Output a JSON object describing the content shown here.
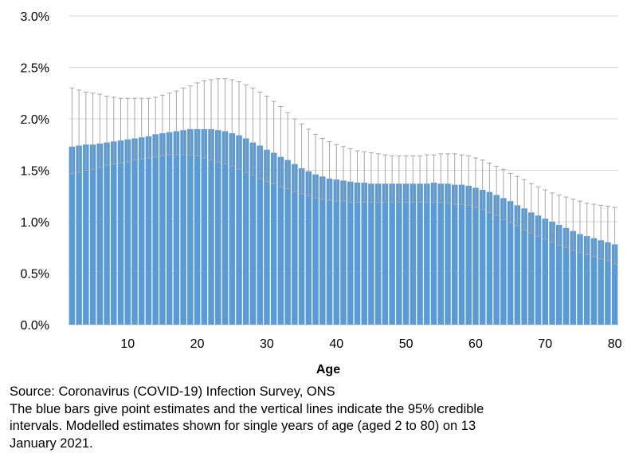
{
  "chart_data": {
    "type": "bar",
    "xlabel": "Age",
    "ylabel": "",
    "title": "",
    "ylim": [
      0,
      3.0
    ],
    "y_ticks": [
      "0.0%",
      "0.5%",
      "1.0%",
      "1.5%",
      "2.0%",
      "2.5%",
      "3.0%"
    ],
    "y_tick_values": [
      0,
      0.5,
      1.0,
      1.5,
      2.0,
      2.5,
      3.0
    ],
    "x_ticks": [
      "10",
      "20",
      "30",
      "40",
      "50",
      "60",
      "70",
      "80"
    ],
    "x_tick_values": [
      10,
      20,
      30,
      40,
      50,
      60,
      70,
      80
    ],
    "grid": true,
    "bar_color": "#5b9bd5",
    "errorbar_color": "#a6a6a6",
    "series": [
      {
        "x": [
          2,
          3,
          4,
          5,
          6,
          7,
          8,
          9,
          10,
          11,
          12,
          13,
          14,
          15,
          16,
          17,
          18,
          19,
          20,
          21,
          22,
          23,
          24,
          25,
          26,
          27,
          28,
          29,
          30,
          31,
          32,
          33,
          34,
          35,
          36,
          37,
          38,
          39,
          40,
          41,
          42,
          43,
          44,
          45,
          46,
          47,
          48,
          49,
          50,
          51,
          52,
          53,
          54,
          55,
          56,
          57,
          58,
          59,
          60,
          61,
          62,
          63,
          64,
          65,
          66,
          67,
          68,
          69,
          70,
          71,
          72,
          73,
          74,
          75,
          76,
          77,
          78,
          79,
          80
        ],
        "values": [
          1.73,
          1.74,
          1.75,
          1.75,
          1.76,
          1.77,
          1.78,
          1.79,
          1.8,
          1.81,
          1.82,
          1.83,
          1.85,
          1.86,
          1.87,
          1.88,
          1.89,
          1.9,
          1.9,
          1.9,
          1.9,
          1.89,
          1.88,
          1.86,
          1.84,
          1.81,
          1.77,
          1.74,
          1.7,
          1.67,
          1.63,
          1.6,
          1.56,
          1.52,
          1.49,
          1.46,
          1.44,
          1.42,
          1.41,
          1.4,
          1.39,
          1.38,
          1.38,
          1.37,
          1.37,
          1.37,
          1.37,
          1.37,
          1.37,
          1.37,
          1.37,
          1.37,
          1.38,
          1.37,
          1.37,
          1.36,
          1.36,
          1.35,
          1.33,
          1.31,
          1.29,
          1.26,
          1.23,
          1.2,
          1.16,
          1.13,
          1.09,
          1.06,
          1.03,
          1.0,
          0.97,
          0.94,
          0.91,
          0.88,
          0.86,
          0.84,
          0.82,
          0.8,
          0.78
        ],
        "lower": [
          1.47,
          1.48,
          1.5,
          1.51,
          1.53,
          1.55,
          1.56,
          1.57,
          1.58,
          1.6,
          1.61,
          1.62,
          1.63,
          1.64,
          1.65,
          1.65,
          1.65,
          1.65,
          1.64,
          1.62,
          1.6,
          1.58,
          1.56,
          1.54,
          1.51,
          1.48,
          1.45,
          1.42,
          1.39,
          1.37,
          1.34,
          1.32,
          1.29,
          1.27,
          1.25,
          1.23,
          1.22,
          1.21,
          1.2,
          1.2,
          1.19,
          1.19,
          1.19,
          1.19,
          1.19,
          1.19,
          1.19,
          1.19,
          1.19,
          1.19,
          1.19,
          1.19,
          1.19,
          1.19,
          1.18,
          1.17,
          1.17,
          1.16,
          1.14,
          1.12,
          1.09,
          1.06,
          1.02,
          0.99,
          0.96,
          0.92,
          0.89,
          0.86,
          0.83,
          0.8,
          0.77,
          0.75,
          0.72,
          0.7,
          0.68,
          0.66,
          0.64,
          0.62,
          0.59
        ],
        "upper": [
          2.3,
          2.28,
          2.26,
          2.25,
          2.24,
          2.22,
          2.21,
          2.2,
          2.2,
          2.2,
          2.2,
          2.2,
          2.21,
          2.23,
          2.25,
          2.27,
          2.3,
          2.32,
          2.35,
          2.37,
          2.38,
          2.39,
          2.39,
          2.38,
          2.36,
          2.33,
          2.3,
          2.26,
          2.22,
          2.17,
          2.12,
          2.06,
          2.0,
          1.95,
          1.9,
          1.85,
          1.81,
          1.78,
          1.75,
          1.73,
          1.71,
          1.69,
          1.68,
          1.67,
          1.66,
          1.65,
          1.64,
          1.64,
          1.64,
          1.64,
          1.64,
          1.65,
          1.65,
          1.66,
          1.66,
          1.66,
          1.65,
          1.64,
          1.62,
          1.6,
          1.57,
          1.54,
          1.51,
          1.47,
          1.44,
          1.41,
          1.37,
          1.34,
          1.31,
          1.28,
          1.26,
          1.24,
          1.22,
          1.2,
          1.18,
          1.17,
          1.16,
          1.15,
          1.14
        ]
      }
    ]
  },
  "notes": {
    "line1": "Source: Coronavirus (COVID-19) Infection Survey, ONS",
    "line2": "The blue bars give point estimates and the vertical lines indicate the 95% credible",
    "line3": "intervals. Modelled estimates shown for single years of age (aged 2 to 80) on 13",
    "line4": "January 2021."
  }
}
